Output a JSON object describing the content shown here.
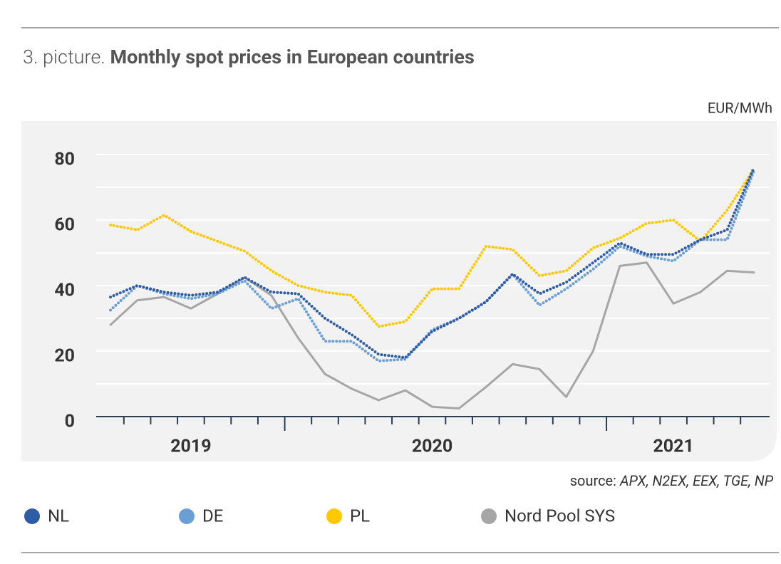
{
  "chart_data": {
    "type": "line",
    "title_prefix": "3. picture.",
    "title": "Monthly spot prices in European countries",
    "unit": "EUR/MWh",
    "source_prefix": "source:",
    "source": "APX, N2EX, EEX, TGE, NP",
    "categories": [
      null,
      null,
      null,
      "2019",
      null,
      null,
      null,
      null,
      null,
      null,
      null,
      null,
      "2020",
      null,
      null,
      null,
      null,
      null,
      null,
      null,
      null,
      "2021",
      null,
      null,
      null
    ],
    "series": [
      {
        "name": "NL",
        "color": "#2f5ca6",
        "style": "dotted",
        "values": [
          36.5,
          40,
          38,
          37,
          38,
          42.5,
          38,
          37.5,
          30,
          25,
          19,
          18,
          26,
          30,
          35,
          43.5,
          37.5,
          41,
          47,
          53,
          49.5,
          49.5,
          54,
          57,
          76
        ]
      },
      {
        "name": "DE",
        "color": "#6a9fd6",
        "style": "dotted",
        "values": [
          32.5,
          40,
          37.5,
          36,
          37.5,
          41.5,
          33,
          36,
          23,
          23,
          17,
          17.5,
          26.5,
          30,
          35,
          43.5,
          34,
          39,
          45,
          52,
          49,
          47.5,
          54,
          54,
          75
        ]
      },
      {
        "name": "PL",
        "color": "#ffc800",
        "style": "dotted",
        "values": [
          58.5,
          57,
          61.5,
          56.5,
          53.5,
          50.5,
          44.5,
          40,
          38,
          37,
          27.5,
          29,
          39,
          39,
          52,
          51,
          43,
          44.5,
          51.5,
          54.5,
          59,
          60,
          53.5,
          63,
          75.5
        ]
      },
      {
        "name": "Nord Pool SYS",
        "color": "#a6a6a6",
        "style": "solid",
        "values": [
          28,
          35.5,
          36.5,
          33,
          37.5,
          42.5,
          37,
          24,
          13,
          8.5,
          5,
          8,
          3,
          2.5,
          9,
          16,
          14.5,
          6,
          20,
          46,
          47,
          34.5,
          38,
          44.5,
          44
        ]
      }
    ],
    "ylim": [
      0,
      80
    ],
    "yticks": [
      0,
      20,
      40,
      60,
      80
    ],
    "ygrid": [
      10,
      30,
      50,
      70
    ],
    "grid": true
  }
}
